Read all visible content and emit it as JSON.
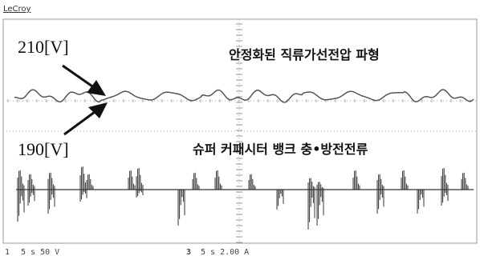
{
  "header": {
    "brand": "LeCroy"
  },
  "annotations": {
    "upper_marker": "210[V]",
    "lower_marker": "190[V]",
    "voltage_caption": "안정화된 직류가선전압 파형",
    "current_caption": "슈퍼 커패시터 뱅크 충•방전전류"
  },
  "footer": {
    "channel_1": "1",
    "channel_1_setting": "5 s 50 V",
    "channel_3": "3",
    "channel_3_setting": "5 s 2.00 A"
  }
}
